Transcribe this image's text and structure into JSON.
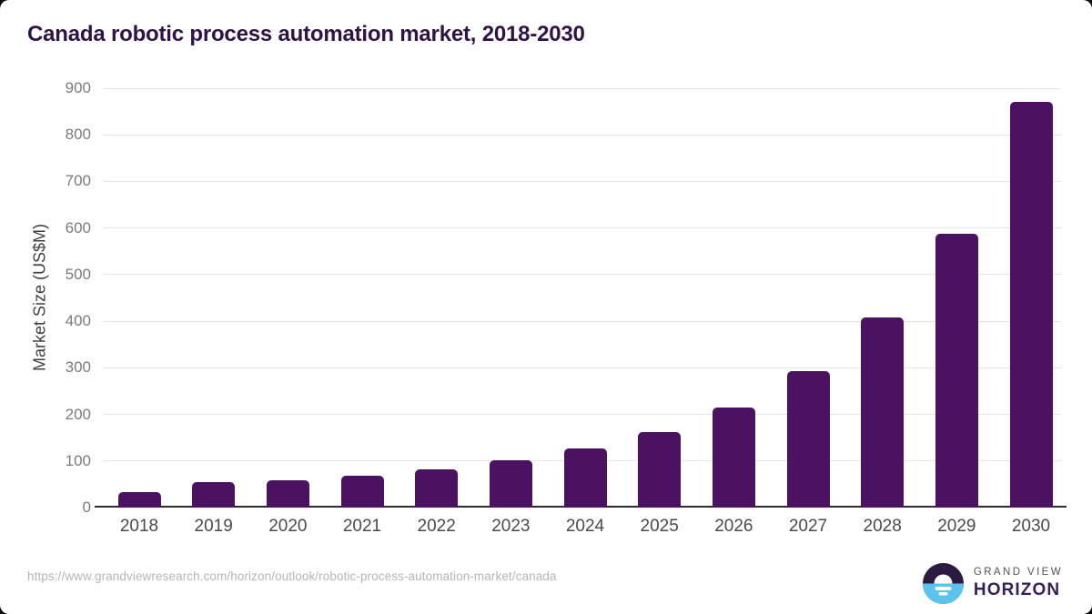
{
  "page": {
    "background": "#0a0a0a",
    "card_background": "#ffffff"
  },
  "chart_data": {
    "type": "bar",
    "title": "Canada robotic process automation market, 2018-2030",
    "ylabel": "Market Size (US$M)",
    "xlabel": "",
    "categories": [
      "2018",
      "2019",
      "2020",
      "2021",
      "2022",
      "2023",
      "2024",
      "2025",
      "2026",
      "2027",
      "2028",
      "2029",
      "2030"
    ],
    "values": [
      33,
      54,
      58,
      68,
      82,
      101,
      126,
      163,
      215,
      292,
      409,
      588,
      870
    ],
    "ylim": [
      0,
      900
    ],
    "ytick_step": 100,
    "grid": true,
    "legend": false,
    "bar_color": "#4a1261"
  },
  "colors": {
    "card_bg": "#ffffff",
    "title_color": "#2f1347",
    "ylabel_color": "#3f3f3f",
    "ytick_color": "#7b7b7b",
    "xtick_color": "#4a4a4a",
    "grid_color": "#e4e4e4",
    "baseline_color": "#2d2d2d",
    "bar_color": "#4a1261",
    "url_color": "#b5b5b5",
    "logo_gray": "#54505c",
    "logo_purple": "#352153",
    "logo_dark": "#2b1b41",
    "logo_blue": "#5cc3ef",
    "logo_white": "#ffffff"
  },
  "footer": {
    "source_url": "https://www.grandviewresearch.com/horizon/outlook/robotic-process-automation-market/canada",
    "logo": {
      "line1": "GRAND VIEW",
      "line2": "HORIZON"
    }
  }
}
